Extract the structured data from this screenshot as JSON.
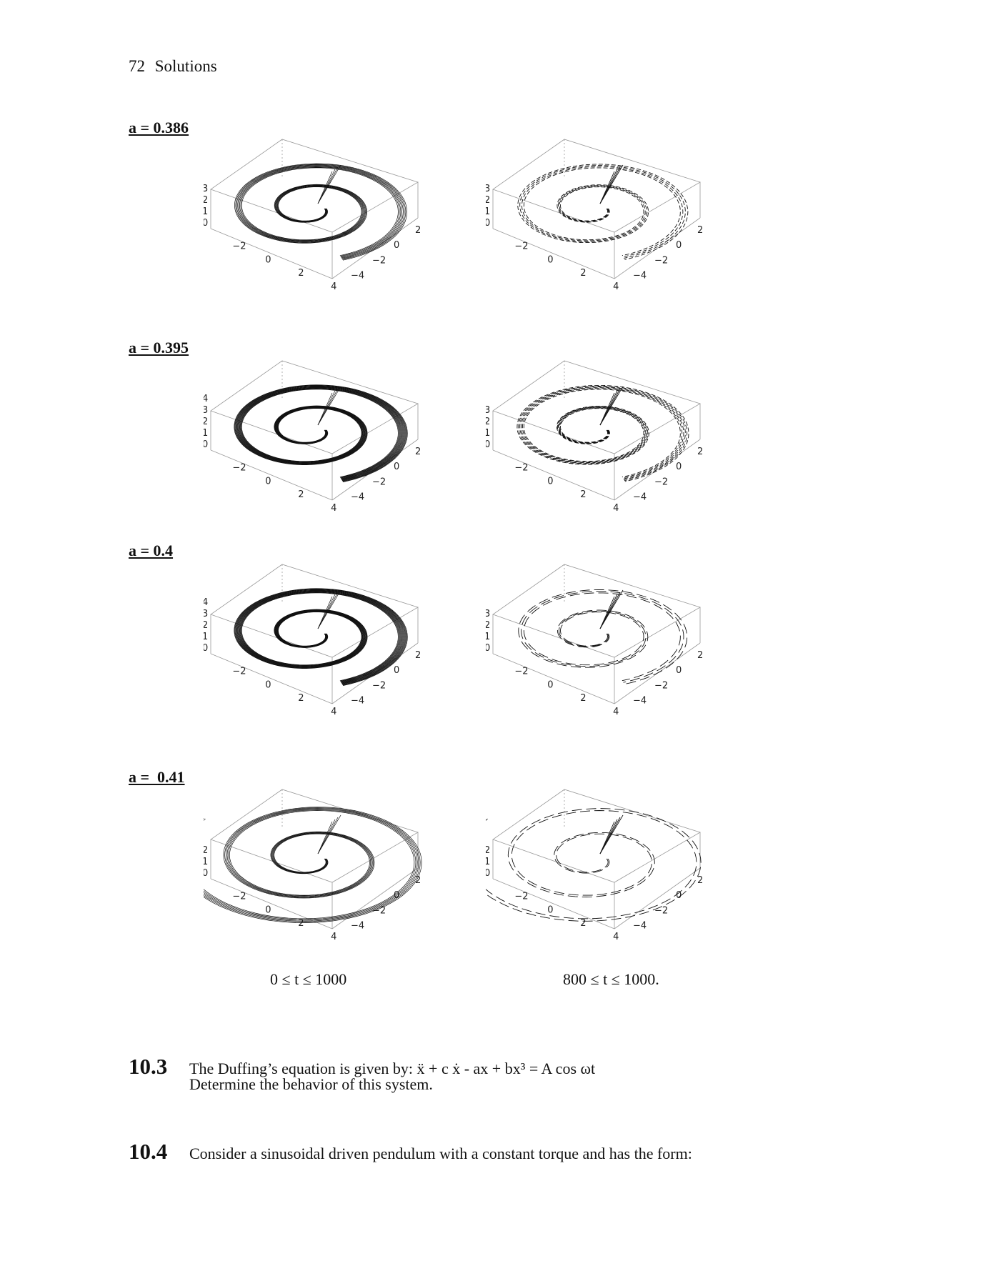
{
  "header": {
    "page_number": "72",
    "section": "Solutions"
  },
  "rows": [
    {
      "label": "a = 0.386",
      "z_ticks": [
        "3",
        "2",
        "1",
        "0"
      ]
    },
    {
      "label": "a = 0.395",
      "z_ticks": [
        "4",
        "3",
        "2",
        "1",
        "0"
      ]
    },
    {
      "label": "a = 0.4",
      "z_ticks": [
        "4",
        "3",
        "2",
        "1",
        "0"
      ]
    },
    {
      "label": "a =  0.41",
      "z_ticks": [
        "2",
        "1",
        "0"
      ]
    }
  ],
  "right_z_ticks": [
    [
      "3",
      "2",
      "1",
      "0"
    ],
    [
      "3",
      "2",
      "1",
      "0"
    ],
    [
      "3",
      "2",
      "1",
      "0"
    ],
    [
      "2",
      "1",
      "0"
    ]
  ],
  "x_ticks": [
    "-2",
    "0",
    "2",
    "4"
  ],
  "y_ticks": [
    "2",
    "0",
    "-2",
    "-4"
  ],
  "captions": {
    "left": "0 ≤ t ≤ 1000",
    "right": "800 ≤ t ≤ 1000."
  },
  "problems": [
    {
      "number": "10.3",
      "line1": "The Duffing’s equation is given by: ẍ  + c ẋ  - ax + bx³ = A cos ωt",
      "line2": "Determine the behavior of this system."
    },
    {
      "number": "10.4",
      "line1": "Consider a sinusoidal driven pendulum with a constant torque and has the form:"
    }
  ]
}
